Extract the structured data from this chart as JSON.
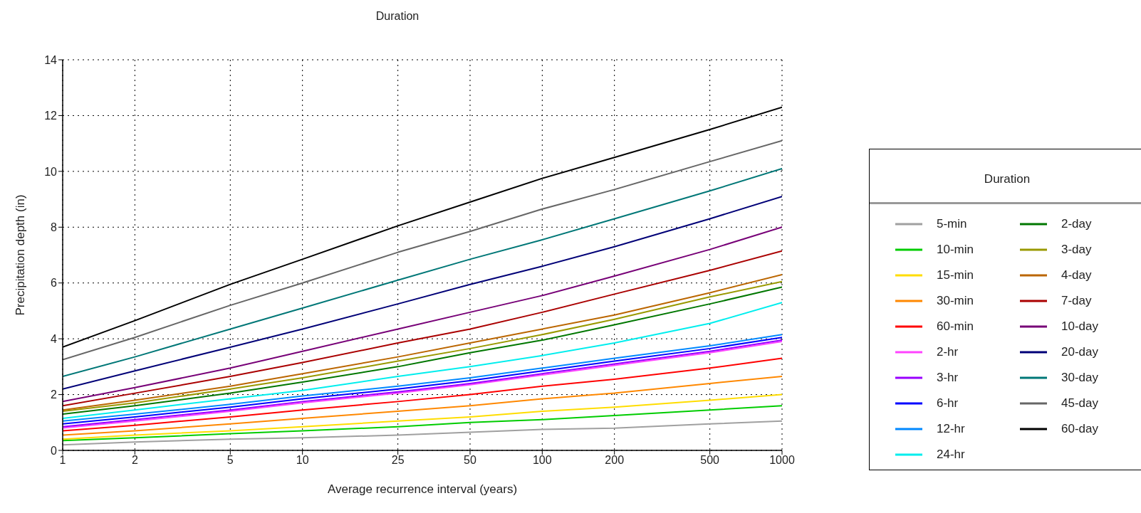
{
  "chart_data": {
    "type": "line",
    "title": "Duration",
    "xlabel": "Average recurrence interval (years)",
    "ylabel": "Precipitation depth (in)",
    "legend_title": "Duration",
    "legend": "right",
    "grid": true,
    "marker": "none",
    "line_style": "solid",
    "log": "x",
    "x": [
      1,
      2,
      5,
      10,
      25,
      50,
      100,
      200,
      500,
      1000
    ],
    "xlim": [
      1,
      1000
    ],
    "xticks": [
      1,
      2,
      5,
      10,
      25,
      50,
      100,
      200,
      500,
      1000
    ],
    "ylim": [
      0,
      14
    ],
    "yticks": [
      0,
      2,
      4,
      6,
      8,
      10,
      12,
      14
    ],
    "series": [
      {
        "name": "5-min",
        "color": "#a0a0a0",
        "values": [
          0.2,
          0.3,
          0.4,
          0.45,
          0.55,
          0.65,
          0.75,
          0.8,
          0.95,
          1.05
        ]
      },
      {
        "name": "10-min",
        "color": "#00cc00",
        "values": [
          0.35,
          0.45,
          0.6,
          0.7,
          0.85,
          1.0,
          1.1,
          1.25,
          1.45,
          1.6
        ]
      },
      {
        "name": "15-min",
        "color": "#ffdd00",
        "values": [
          0.4,
          0.55,
          0.7,
          0.85,
          1.05,
          1.2,
          1.4,
          1.55,
          1.8,
          2.0
        ]
      },
      {
        "name": "30-min",
        "color": "#ff8800",
        "values": [
          0.55,
          0.7,
          0.95,
          1.15,
          1.4,
          1.6,
          1.85,
          2.05,
          2.4,
          2.65
        ]
      },
      {
        "name": "60-min",
        "color": "#ff0000",
        "values": [
          0.7,
          0.9,
          1.2,
          1.45,
          1.75,
          2.0,
          2.3,
          2.55,
          2.95,
          3.3
        ]
      },
      {
        "name": "2-hr",
        "color": "#ff44ff",
        "values": [
          0.8,
          1.05,
          1.4,
          1.7,
          2.05,
          2.35,
          2.7,
          3.05,
          3.5,
          3.9
        ]
      },
      {
        "name": "3-hr",
        "color": "#9900ff",
        "values": [
          0.85,
          1.1,
          1.45,
          1.75,
          2.1,
          2.4,
          2.75,
          3.1,
          3.55,
          3.95
        ]
      },
      {
        "name": "6-hr",
        "color": "#0000ff",
        "values": [
          0.95,
          1.2,
          1.55,
          1.85,
          2.2,
          2.5,
          2.85,
          3.2,
          3.65,
          4.05
        ]
      },
      {
        "name": "12-hr",
        "color": "#0088ff",
        "values": [
          1.05,
          1.3,
          1.65,
          1.95,
          2.3,
          2.6,
          2.95,
          3.3,
          3.75,
          4.15
        ]
      },
      {
        "name": "24-hr",
        "color": "#00eeee",
        "values": [
          1.15,
          1.45,
          1.85,
          2.15,
          2.65,
          3.0,
          3.4,
          3.85,
          4.55,
          5.3
        ]
      },
      {
        "name": "2-day",
        "color": "#007700",
        "values": [
          1.3,
          1.6,
          2.05,
          2.45,
          3.0,
          3.5,
          3.95,
          4.5,
          5.25,
          5.85
        ]
      },
      {
        "name": "3-day",
        "color": "#999900",
        "values": [
          1.4,
          1.7,
          2.2,
          2.6,
          3.2,
          3.65,
          4.15,
          4.7,
          5.5,
          6.05
        ]
      },
      {
        "name": "4-day",
        "color": "#bb6600",
        "values": [
          1.45,
          1.8,
          2.3,
          2.75,
          3.35,
          3.85,
          4.35,
          4.85,
          5.65,
          6.3
        ]
      },
      {
        "name": "7-day",
        "color": "#aa0000",
        "values": [
          1.6,
          2.05,
          2.65,
          3.15,
          3.85,
          4.35,
          4.95,
          5.6,
          6.45,
          7.15
        ]
      },
      {
        "name": "10-day",
        "color": "#770077",
        "values": [
          1.75,
          2.25,
          2.95,
          3.55,
          4.35,
          4.95,
          5.55,
          6.25,
          7.2,
          8.0
        ]
      },
      {
        "name": "20-day",
        "color": "#000077",
        "values": [
          2.2,
          2.85,
          3.7,
          4.35,
          5.25,
          5.95,
          6.6,
          7.3,
          8.3,
          9.1
        ]
      },
      {
        "name": "30-day",
        "color": "#007777",
        "values": [
          2.65,
          3.35,
          4.35,
          5.1,
          6.1,
          6.85,
          7.55,
          8.3,
          9.3,
          10.1
        ]
      },
      {
        "name": "45-day",
        "color": "#666666",
        "values": [
          3.25,
          4.05,
          5.2,
          6.0,
          7.1,
          7.85,
          8.65,
          9.35,
          10.35,
          11.1
        ]
      },
      {
        "name": "60-day",
        "color": "#000000",
        "values": [
          3.7,
          4.65,
          5.95,
          6.85,
          8.05,
          8.9,
          9.75,
          10.5,
          11.5,
          12.3
        ]
      }
    ]
  }
}
